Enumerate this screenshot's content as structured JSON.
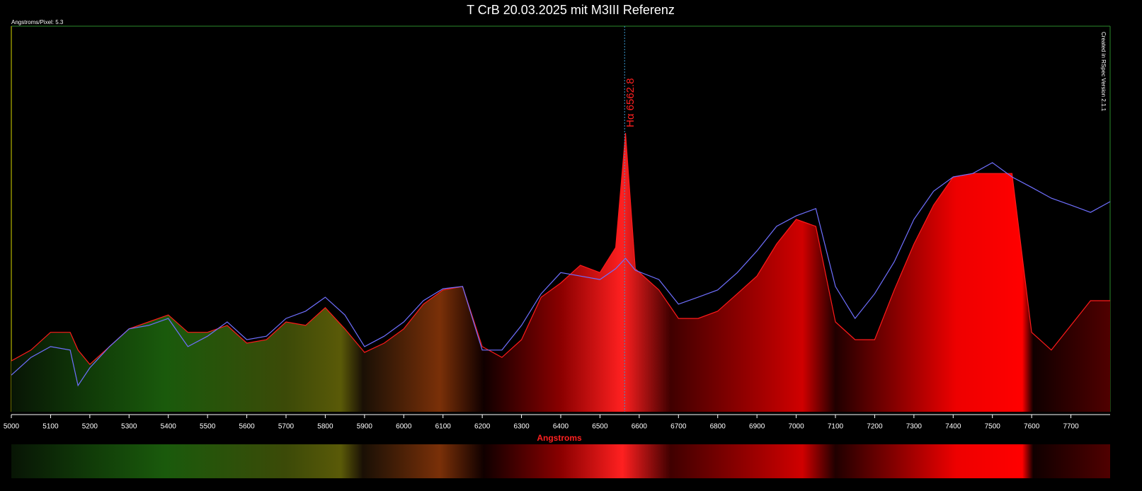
{
  "chart_data": {
    "type": "line",
    "title": "T CrB 20.03.2025 mit M3III Referenz",
    "subtitle": "Angstroms/Pixel: 5.3",
    "credit": "Created in RSpec Version 2.1.1",
    "x_label": "Angstroms",
    "annotation": {
      "text": "Hα 6562.8",
      "x": 6562.8
    },
    "x": [
      5000,
      5050,
      5100,
      5150,
      5170,
      5200,
      5250,
      5300,
      5350,
      5400,
      5450,
      5500,
      5550,
      5600,
      5650,
      5700,
      5750,
      5800,
      5850,
      5900,
      5950,
      6000,
      6050,
      6100,
      6150,
      6200,
      6250,
      6300,
      6350,
      6400,
      6450,
      6500,
      6540,
      6565,
      6590,
      6650,
      6700,
      6750,
      6800,
      6850,
      6900,
      6950,
      7000,
      7050,
      7100,
      7150,
      7200,
      7250,
      7300,
      7350,
      7400,
      7450,
      7500,
      7550,
      7600,
      7650,
      7700,
      7750,
      7800
    ],
    "series": [
      {
        "color": "#ff1a1a",
        "fill": true,
        "values": [
          13.2,
          16.0,
          20.6,
          20.6,
          16.0,
          12.3,
          16.9,
          21.5,
          23.3,
          25.1,
          20.6,
          20.6,
          22.4,
          17.8,
          18.7,
          23.3,
          22.4,
          27.0,
          21.5,
          15.4,
          17.8,
          21.5,
          27.9,
          31.6,
          32.5,
          16.9,
          14.1,
          18.7,
          29.7,
          33.4,
          38.0,
          36.1,
          42.6,
          72.3,
          37.1,
          31.6,
          24.2,
          24.2,
          26.1,
          30.6,
          35.2,
          43.5,
          49.9,
          48.1,
          23.3,
          18.7,
          18.7,
          31.6,
          43.5,
          53.6,
          60.9,
          61.8,
          61.8,
          61.8,
          20.6,
          16.0,
          22.4,
          28.8,
          28.8
        ]
      },
      {
        "color": "#6f6fff",
        "fill": false,
        "values": [
          9.5,
          14.1,
          16.9,
          16.0,
          6.8,
          11.4,
          16.9,
          21.5,
          22.4,
          24.2,
          16.9,
          19.6,
          23.3,
          18.7,
          19.6,
          24.2,
          26.1,
          29.7,
          25.1,
          16.9,
          19.6,
          23.3,
          28.8,
          31.9,
          32.5,
          16.0,
          16.0,
          22.4,
          30.6,
          36.1,
          35.2,
          34.3,
          37.1,
          39.8,
          36.7,
          34.3,
          27.9,
          29.7,
          31.6,
          36.1,
          41.7,
          48.1,
          50.8,
          52.7,
          32.5,
          24.2,
          30.6,
          38.9,
          49.9,
          57.2,
          60.9,
          61.8,
          64.6,
          60.9,
          58.2,
          55.4,
          53.6,
          51.7,
          54.5
        ]
      }
    ],
    "xlim": [
      5000,
      7800
    ],
    "xticks": [
      5000,
      5100,
      5200,
      5300,
      5400,
      5500,
      5600,
      5700,
      5800,
      5900,
      6000,
      6100,
      6200,
      6300,
      6400,
      6500,
      6600,
      6700,
      6800,
      6900,
      7000,
      7100,
      7200,
      7300,
      7400,
      7500,
      7600,
      7700
    ],
    "ylim": [
      0,
      100
    ]
  }
}
